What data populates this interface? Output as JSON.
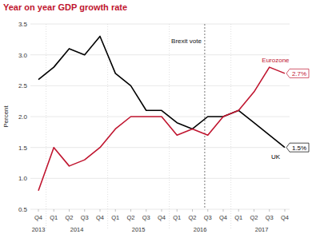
{
  "chart_data": {
    "type": "line",
    "title": "Year on year GDP growth rate",
    "y_label": "Percent",
    "categories": [
      "Q4",
      "Q1",
      "Q2",
      "Q3",
      "Q4",
      "Q1",
      "Q2",
      "Q3",
      "Q4",
      "Q1",
      "Q2",
      "Q3",
      "Q4",
      "Q1",
      "Q2",
      "Q3",
      "Q4"
    ],
    "x_groups": [
      {
        "label": "2013",
        "from": 0,
        "to": 0
      },
      {
        "label": "2014",
        "from": 1,
        "to": 4
      },
      {
        "label": "2015",
        "from": 5,
        "to": 8
      },
      {
        "label": "2016",
        "from": 9,
        "to": 12
      },
      {
        "label": "2017",
        "from": 13,
        "to": 16
      }
    ],
    "series": [
      {
        "name": "UK",
        "color": "#000000",
        "values": [
          2.6,
          2.8,
          3.1,
          3.0,
          3.3,
          2.7,
          2.5,
          2.1,
          2.1,
          1.9,
          1.8,
          2.0,
          2.0,
          2.1,
          1.9,
          1.7,
          1.5
        ],
        "value_labels": [
          null,
          null,
          null,
          null,
          null,
          null,
          null,
          null,
          null,
          null,
          null,
          null,
          null,
          null,
          null,
          null,
          "1.5%"
        ]
      },
      {
        "name": "Eurozone",
        "color": "#c0152f",
        "values": [
          0.8,
          1.5,
          1.2,
          1.3,
          1.5,
          1.8,
          2.0,
          2.0,
          2.0,
          1.7,
          1.8,
          1.7,
          2.0,
          2.1,
          2.4,
          2.8,
          2.7
        ],
        "value_labels": [
          null,
          null,
          null,
          null,
          null,
          null,
          null,
          null,
          null,
          null,
          null,
          null,
          null,
          null,
          null,
          null,
          "2.7%"
        ]
      }
    ],
    "annotations": [
      {
        "text": "Brexit vote",
        "x": 10.8
      }
    ],
    "ylim": [
      0.5,
      3.5
    ],
    "yticks": [
      0.5,
      {
        "value": 1,
        "label": "1.0"
      },
      1.5,
      {
        "value": 2,
        "label": "2.0"
      },
      2.5,
      {
        "value": 3,
        "label": "3.0"
      },
      3.5
    ],
    "grid": true
  }
}
